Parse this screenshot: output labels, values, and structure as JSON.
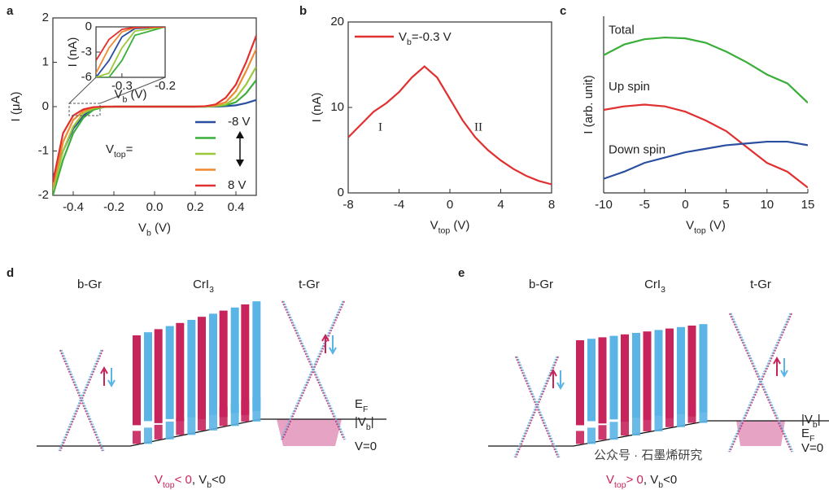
{
  "panels": [
    "a",
    "b",
    "c",
    "d",
    "e"
  ],
  "chart_data": [
    {
      "type": "line",
      "x_label": [
        "V",
        "b",
        " (V)"
      ],
      "y_label": "I (μA)",
      "x": [
        -0.5,
        -0.45,
        -0.4,
        -0.35,
        -0.3,
        -0.25,
        -0.2,
        0,
        0.2,
        0.25,
        0.3,
        0.35,
        0.4,
        0.45,
        0.5
      ],
      "series": [
        {
          "name": "-8 V",
          "color": "#2b4fa0",
          "values": [
            -1.6,
            -1.0,
            -0.5,
            -0.2,
            -0.05,
            -0.01,
            0,
            0,
            0,
            0,
            0,
            0.01,
            0.03,
            0.08,
            0.15
          ]
        },
        {
          "color": "#3aae3a",
          "values": [
            -2.0,
            -1.2,
            -0.6,
            -0.25,
            -0.07,
            -0.01,
            0,
            0,
            0,
            0,
            0.01,
            0.03,
            0.1,
            0.3,
            0.6
          ]
        },
        {
          "color": "#9dc83a",
          "values": [
            -1.9,
            -1.0,
            -0.45,
            -0.15,
            -0.04,
            -0.01,
            0,
            0,
            0,
            0,
            0.01,
            0.05,
            0.2,
            0.5,
            0.9
          ]
        },
        {
          "color": "#f08a30",
          "values": [
            -1.8,
            -0.8,
            -0.3,
            -0.1,
            -0.02,
            0,
            0,
            0,
            0,
            0.01,
            0.03,
            0.1,
            0.35,
            0.8,
            1.3
          ]
        },
        {
          "name": "8 V",
          "color": "#e03030",
          "values": [
            -1.7,
            -0.6,
            -0.2,
            -0.06,
            -0.01,
            0,
            0,
            0,
            0,
            0.01,
            0.05,
            0.2,
            0.5,
            1.0,
            1.6
          ]
        }
      ],
      "xlim": [
        -0.5,
        0.5
      ],
      "ylim": [
        -2,
        2
      ],
      "xticks": [
        -0.4,
        -0.2,
        {
          "value": 0,
          "label": "0.0"
        },
        0.2,
        0.4
      ],
      "yticks": [
        -2,
        -1,
        0,
        1,
        2
      ],
      "legend_title": [
        "V",
        "top",
        "="
      ],
      "inset": {
        "type": "line",
        "x_label": [
          "V",
          "b",
          " (V)"
        ],
        "y_label": "I (nA)",
        "x": [
          -0.36,
          -0.33,
          -0.3,
          -0.27,
          -0.2
        ],
        "series": [
          {
            "color": "#2b4fa0",
            "values": [
              -6,
              -4,
              -1.2,
              -0.2,
              0
            ]
          },
          {
            "color": "#3aae3a",
            "values": [
              -6,
              -6,
              -4,
              -1,
              0
            ]
          },
          {
            "color": "#9dc83a",
            "values": [
              -6,
              -5.5,
              -2.5,
              -0.5,
              0
            ]
          },
          {
            "color": "#f08a30",
            "values": [
              -5.5,
              -2.5,
              -0.6,
              -0.1,
              0
            ]
          },
          {
            "color": "#e03030",
            "values": [
              -4,
              -1.5,
              -0.3,
              -0.05,
              0
            ]
          }
        ],
        "xlim": [
          -0.36,
          -0.2
        ],
        "ylim": [
          -6,
          0
        ],
        "xticks": [
          -0.3,
          -0.2
        ],
        "yticks": [
          0,
          -3,
          -6
        ]
      }
    },
    {
      "type": "line",
      "x_label": [
        "V",
        "top",
        " (V)"
      ],
      "y_label": "I (nA)",
      "x": [
        -8,
        -7,
        -6,
        -5,
        -4,
        -3,
        -2,
        -1,
        0,
        1,
        2,
        3,
        4,
        5,
        6,
        7,
        8
      ],
      "series": [
        {
          "name": [
            "V",
            "b",
            "=-0.3 V"
          ],
          "color": "#e03030",
          "values": [
            6.5,
            8,
            9.5,
            10.5,
            11.8,
            13.5,
            14.8,
            13.5,
            11,
            8.5,
            6.5,
            5,
            3.8,
            2.8,
            2,
            1.4,
            1
          ]
        }
      ],
      "xlim": [
        -8,
        8
      ],
      "ylim": [
        0,
        20
      ],
      "xticks": [
        -8,
        -4,
        0,
        4,
        8
      ],
      "yticks": [
        0,
        10,
        20
      ],
      "annotations": [
        "I",
        "II"
      ]
    },
    {
      "type": "line",
      "x_label": [
        "V",
        "top",
        " (V)"
      ],
      "y_label": "I (arb. unit)",
      "x": [
        -10,
        -7.5,
        -5,
        -2.5,
        0,
        2.5,
        5,
        7.5,
        10,
        12.5,
        15
      ],
      "series": [
        {
          "name": "Total",
          "color": "#3aae3a",
          "values": [
            0.78,
            0.84,
            0.87,
            0.88,
            0.875,
            0.85,
            0.8,
            0.74,
            0.67,
            0.62,
            0.51
          ]
        },
        {
          "name": "Up spin",
          "color": "#e03030",
          "values": [
            0.47,
            0.49,
            0.5,
            0.49,
            0.46,
            0.41,
            0.35,
            0.26,
            0.17,
            0.12,
            0.03
          ]
        },
        {
          "name": "Down spin",
          "color": "#2b4fa0",
          "values": [
            0.08,
            0.12,
            0.17,
            0.2,
            0.23,
            0.25,
            0.27,
            0.28,
            0.29,
            0.29,
            0.27
          ]
        }
      ],
      "xlim": [
        -10,
        15
      ],
      "ylim": [
        0,
        1
      ],
      "xticks": [
        -10,
        -5,
        0,
        5,
        10,
        15
      ]
    }
  ],
  "diagrams": [
    {
      "columns": [
        [
          "b-Gr"
        ],
        [
          "CrI",
          "3"
        ],
        [
          "t-Gr"
        ]
      ],
      "levels": [
        [
          "E",
          "F"
        ],
        [
          "|V",
          "b",
          "|"
        ],
        [
          "V=0"
        ]
      ],
      "caption": [
        {
          "parts": [
            "V",
            "top",
            "< 0"
          ],
          "color": "#c8245c"
        },
        {
          "parts": [
            ", V",
            "b",
            "<0"
          ],
          "color": "#222"
        }
      ]
    },
    {
      "columns": [
        [
          "b-Gr"
        ],
        [
          "CrI",
          "3"
        ],
        [
          "t-Gr"
        ]
      ],
      "levels": [
        [
          "|V",
          "b",
          "|"
        ],
        [
          "E",
          "F"
        ],
        [
          "V=0"
        ]
      ],
      "caption": [
        {
          "parts": [
            "V",
            "top",
            "> 0"
          ],
          "color": "#c8245c"
        },
        {
          "parts": [
            ", V",
            "b",
            "<0"
          ],
          "color": "#222"
        }
      ]
    }
  ],
  "watermark": "公众号 · 石墨烯研究"
}
